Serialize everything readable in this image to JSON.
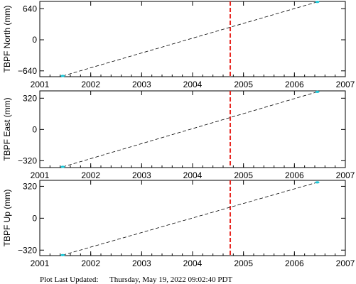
{
  "chart_data": [
    {
      "type": "line",
      "ylabel": "TBPF North (mm)",
      "xlim": [
        2001,
        2007
      ],
      "ylim": [
        -760,
        790
      ],
      "xticks": [
        2001,
        2002,
        2003,
        2004,
        2005,
        2006,
        2007
      ],
      "yticks": [
        -640,
        0,
        640
      ],
      "ytick_labels": [
        "−640",
        "0",
        "640"
      ],
      "fit_line": {
        "x": [
          2001.45,
          2006.45
        ],
        "y": [
          -745,
          780
        ]
      },
      "points": [
        {
          "x": 2001.45,
          "y": -745
        },
        {
          "x": 2006.45,
          "y": 780
        }
      ],
      "event_line_x": 2004.74,
      "grid": false
    },
    {
      "type": "line",
      "ylabel": "TBPF East (mm)",
      "xlim": [
        2001,
        2007
      ],
      "ylim": [
        -390,
        395
      ],
      "xticks": [
        2001,
        2002,
        2003,
        2004,
        2005,
        2006,
        2007
      ],
      "yticks": [
        -320,
        0,
        320
      ],
      "ytick_labels": [
        "−320",
        "0",
        "320"
      ],
      "fit_line": {
        "x": [
          2001.45,
          2006.45
        ],
        "y": [
          -383,
          385
        ]
      },
      "points": [
        {
          "x": 2001.45,
          "y": -383
        },
        {
          "x": 2006.45,
          "y": 385
        }
      ],
      "event_line_x": 2004.74,
      "grid": false
    },
    {
      "type": "line",
      "ylabel": "TBPF Up (mm)",
      "xlim": [
        2001,
        2007
      ],
      "ylim": [
        -375,
        380
      ],
      "xticks": [
        2001,
        2002,
        2003,
        2004,
        2005,
        2006,
        2007
      ],
      "yticks": [
        -320,
        0,
        320
      ],
      "ytick_labels": [
        "−320",
        "0",
        "320"
      ],
      "fit_line": {
        "x": [
          2001.45,
          2006.45
        ],
        "y": [
          -370,
          360
        ]
      },
      "points": [
        {
          "x": 2001.45,
          "y": -370
        },
        {
          "x": 2006.45,
          "y": 360
        }
      ],
      "event_line_x": 2004.74,
      "grid": false
    }
  ],
  "colors": {
    "fit_line": "#000000",
    "event_line": "#e8251f",
    "points": "#1ec8d8",
    "axes": "#000000"
  },
  "footer": {
    "label": "Plot Last Updated:",
    "timestamp": "Thursday, May 19, 2022 09:02:40 PDT"
  }
}
